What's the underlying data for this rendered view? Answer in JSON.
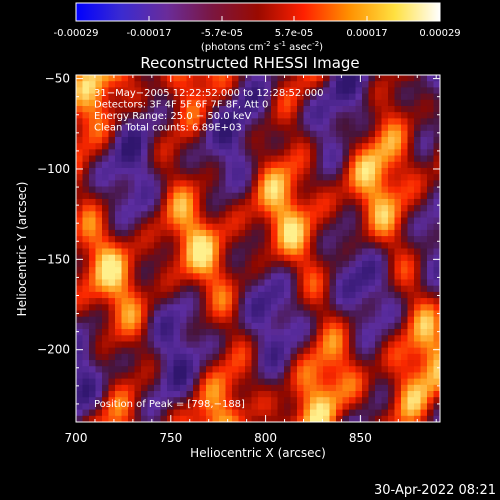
{
  "timestamp": "30-Apr-2022 08:21",
  "colorbar": {
    "ticks": [
      "-0.00029",
      "-0.00017",
      "-5.7e-05",
      "5.7e-05",
      "0.00017",
      "0.00029"
    ],
    "units_main": "(photons cm",
    "units_exp1": "-2",
    "units_mid": " s",
    "units_exp2": "-1",
    "units_end": " asec",
    "units_exp3": "-2",
    "units_close": ")",
    "colors": [
      "#0000ff",
      "#3b2bd0",
      "#6a2c9a",
      "#7a1640",
      "#9a0a00",
      "#ff2000",
      "#ff9000",
      "#ffe040",
      "#ffffff"
    ]
  },
  "chart_data": {
    "type": "heatmap",
    "title": "Reconstructed RHESSI Image",
    "xlabel": "Heliocentric X (arcsec)",
    "ylabel": "Heliocentric Y (arcsec)",
    "xlim": [
      700,
      892
    ],
    "ylim": [
      -240,
      -48
    ],
    "x_ticks": [
      {
        "v": 700,
        "label": "700"
      },
      {
        "v": 750,
        "label": "750"
      },
      {
        "v": 800,
        "label": "800"
      },
      {
        "v": 850,
        "label": "850"
      }
    ],
    "y_ticks": [
      {
        "v": -50,
        "label": "−50"
      },
      {
        "v": -100,
        "label": "−100"
      },
      {
        "v": -150,
        "label": "−150"
      },
      {
        "v": -200,
        "label": "−200"
      }
    ],
    "value_range": [
      -0.00029,
      0.00029
    ],
    "grid": false,
    "info_lines": [
      "31−May−2005 12:22:52.000 to 12:28:52.000",
      "Detectors: 3F 4F 5F 6F 7F 8F, Att 0",
      "Energy Range: 25.0 − 50.0 keV",
      "Clean     Total counts: 6.89E+03"
    ],
    "peak_label": "Position of Peak = [798,−188]",
    "peak": [
      798,
      -188
    ]
  }
}
